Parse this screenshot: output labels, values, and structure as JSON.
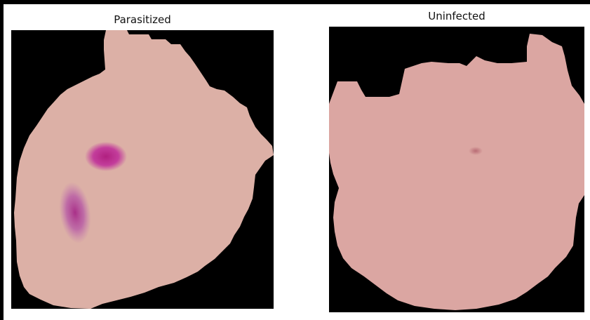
{
  "panels": [
    {
      "title": "Parasitized",
      "cell_color": "#dcb0a6",
      "stain_color": "#c0309a"
    },
    {
      "title": "Uninfected",
      "cell_color": "#dba6a2",
      "stain_color": "#b86b74"
    }
  ],
  "background_color": "#000000"
}
